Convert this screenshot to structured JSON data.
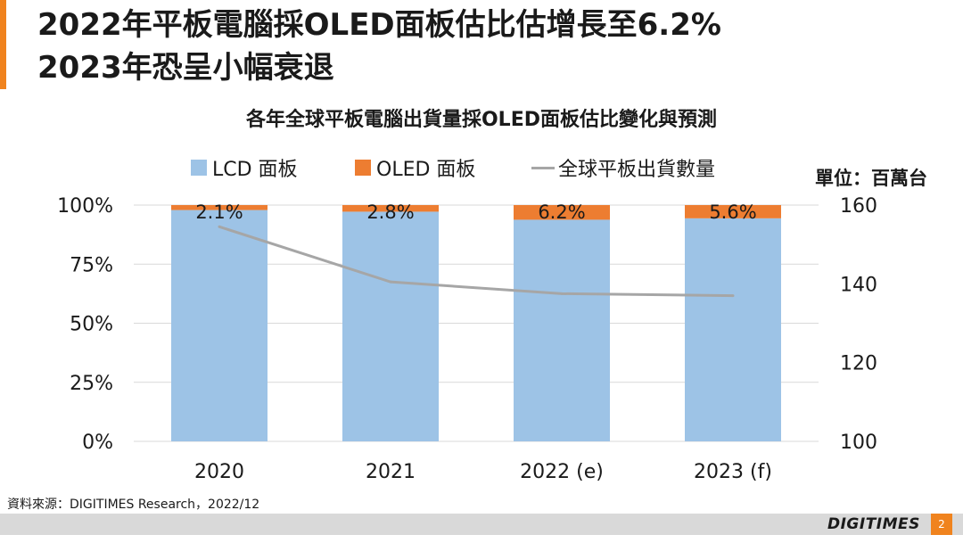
{
  "header": {
    "title_line1": "2022年平板電腦採OLED面板估比估增長至6.2%",
    "title_line2": "2023年恐呈小幅衰退"
  },
  "colors": {
    "lcd": "#9dc3e6",
    "oled": "#ed7d31",
    "line": "#a6a6a6",
    "accent": "#f0831e"
  },
  "chart_data": {
    "type": "bar",
    "stacked": true,
    "title": "各年全球平板電腦出貨量採OLED面板估比變化與預測",
    "categories": [
      "2020",
      "2021",
      "2022 (e)",
      "2023 (f)"
    ],
    "series": [
      {
        "name": "LCD 面板",
        "type": "bar",
        "values": [
          97.9,
          97.2,
          93.8,
          94.4
        ]
      },
      {
        "name": "OLED 面板",
        "type": "bar",
        "values": [
          2.1,
          2.8,
          6.2,
          5.6
        ],
        "labels": [
          "2.1%",
          "2.8%",
          "6.2%",
          "5.6%"
        ]
      },
      {
        "name": "全球平板出貨數量",
        "type": "line",
        "axis": "right",
        "values": [
          154.5,
          140.5,
          137.5,
          137
        ]
      }
    ],
    "left_axis": {
      "ticks": [
        "0%",
        "25%",
        "50%",
        "75%",
        "100%"
      ],
      "range": [
        0,
        100
      ]
    },
    "right_axis": {
      "ticks": [
        "100",
        "120",
        "140",
        "160"
      ],
      "range": [
        100,
        160
      ],
      "unit_label": "單位：百萬台"
    },
    "legend_position": "top",
    "grid": true
  },
  "source": "資料來源：DIGITIMES Research，2022/12",
  "footer": {
    "logo": "DIGITIMES",
    "page": "2"
  }
}
